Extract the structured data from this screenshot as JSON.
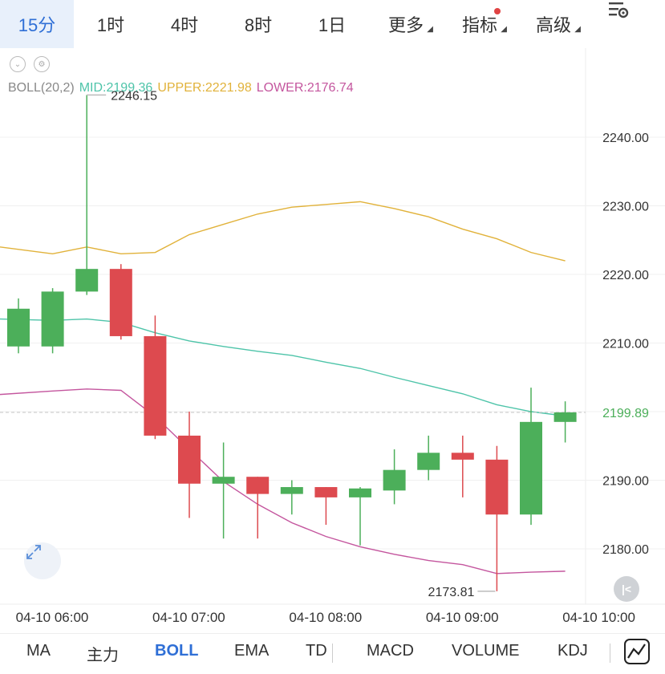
{
  "periods": [
    {
      "label": "15分",
      "active": true
    },
    {
      "label": "1时",
      "active": false
    },
    {
      "label": "4时",
      "active": false
    },
    {
      "label": "8时",
      "active": false
    },
    {
      "label": "1日",
      "active": false
    },
    {
      "label": "更多",
      "active": false,
      "dropdown": true
    },
    {
      "label": "指标",
      "active": false,
      "dropdown": true,
      "badge": true
    },
    {
      "label": "高级",
      "active": false,
      "dropdown": true
    }
  ],
  "indicator_bar": {
    "name": "BOLL(20,2)",
    "mid": "MID:2199.36",
    "upper": "UPPER:2221.98",
    "lower": "LOWER:2176.74"
  },
  "indicators": [
    "MA",
    "主力",
    "BOLL",
    "EMA",
    "TD",
    "MACD",
    "VOLUME",
    "KDJ"
  ],
  "active_indicator": "BOLL",
  "icons": [
    "eye-icon",
    "gear-icon",
    "chart-settings-icon",
    "expand-icon",
    "back-icon",
    "draw-line-icon"
  ],
  "colors": {
    "up": "#4caf5a",
    "down": "#dd4a4f",
    "mid": "#4ec4a9",
    "upper": "#e1b23a",
    "lower": "#c4569e",
    "accent": "#2f6fd6",
    "last_price": "#4caf5a"
  },
  "chart_data": {
    "type": "candlestick",
    "ylim": [
      2172,
      2250
    ],
    "y_ticks": [
      2240.0,
      2230.0,
      2220.0,
      2210.0,
      2200.0,
      2190.0,
      2180.0
    ],
    "y_tick_labels": [
      "2240.00",
      "2230.00",
      "2220.00",
      "2210.00",
      "",
      "2190.00",
      "2180.00"
    ],
    "x_labels": [
      "04-10 06:00",
      "04-10 07:00",
      "04-10 08:00",
      "04-10 09:00",
      "04-10 10:00"
    ],
    "x_label_bar_index": [
      0,
      4,
      8,
      12,
      16
    ],
    "last_price": 2199.89,
    "last_price_label": "2199.89",
    "max_label": "2246.15",
    "max_value": 2246.15,
    "max_bar_index": 2,
    "min_label": "2173.81",
    "min_value": 2173.81,
    "min_bar_index": 14,
    "candles": [
      {
        "o": 2209.5,
        "h": 2216.5,
        "l": 2208.5,
        "c": 2215.0
      },
      {
        "o": 2209.5,
        "h": 2218.0,
        "l": 2208.5,
        "c": 2217.5
      },
      {
        "o": 2217.5,
        "h": 2246.15,
        "l": 2217.0,
        "c": 2220.8
      },
      {
        "o": 2220.8,
        "h": 2221.5,
        "l": 2210.5,
        "c": 2211.0
      },
      {
        "o": 2211.0,
        "h": 2214.0,
        "l": 2196.0,
        "c": 2196.5
      },
      {
        "o": 2196.5,
        "h": 2200.0,
        "l": 2184.5,
        "c": 2189.5
      },
      {
        "o": 2189.5,
        "h": 2195.5,
        "l": 2181.5,
        "c": 2190.5
      },
      {
        "o": 2190.5,
        "h": 2190.5,
        "l": 2181.5,
        "c": 2188.0
      },
      {
        "o": 2188.0,
        "h": 2190.0,
        "l": 2185.0,
        "c": 2189.0
      },
      {
        "o": 2189.0,
        "h": 2189.0,
        "l": 2183.5,
        "c": 2187.5
      },
      {
        "o": 2187.5,
        "h": 2189.0,
        "l": 2180.5,
        "c": 2188.8
      },
      {
        "o": 2188.5,
        "h": 2194.5,
        "l": 2186.5,
        "c": 2191.5
      },
      {
        "o": 2191.5,
        "h": 2196.5,
        "l": 2190.0,
        "c": 2194.0
      },
      {
        "o": 2194.0,
        "h": 2196.5,
        "l": 2187.5,
        "c": 2193.0
      },
      {
        "o": 2193.0,
        "h": 2195.0,
        "l": 2173.81,
        "c": 2185.0
      },
      {
        "o": 2185.0,
        "h": 2203.5,
        "l": 2183.5,
        "c": 2198.5
      },
      {
        "o": 2198.5,
        "h": 2201.5,
        "l": 2195.5,
        "c": 2199.89
      }
    ],
    "series": [
      {
        "name": "UPPER",
        "values": [
          2224.0,
          2223.0,
          2224.0,
          2223.0,
          2223.2,
          2225.8,
          2227.3,
          2228.8,
          2229.8,
          2230.2,
          2230.6,
          2229.6,
          2228.4,
          2226.6,
          2225.2,
          2223.2,
          2221.98
        ]
      },
      {
        "name": "MID",
        "values": [
          2213.5,
          2213.3,
          2213.5,
          2213.0,
          2211.5,
          2210.3,
          2209.5,
          2208.8,
          2208.2,
          2207.2,
          2206.3,
          2205.0,
          2203.8,
          2202.6,
          2201.0,
          2200.0,
          2199.36
        ]
      },
      {
        "name": "LOWER",
        "values": [
          2202.5,
          2203.0,
          2203.3,
          2203.1,
          2199.3,
          2194.5,
          2189.8,
          2186.5,
          2183.8,
          2181.8,
          2180.3,
          2179.2,
          2178.3,
          2177.7,
          2176.4,
          2176.6,
          2176.74
        ]
      }
    ]
  },
  "x_axis_label_prefix": ""
}
